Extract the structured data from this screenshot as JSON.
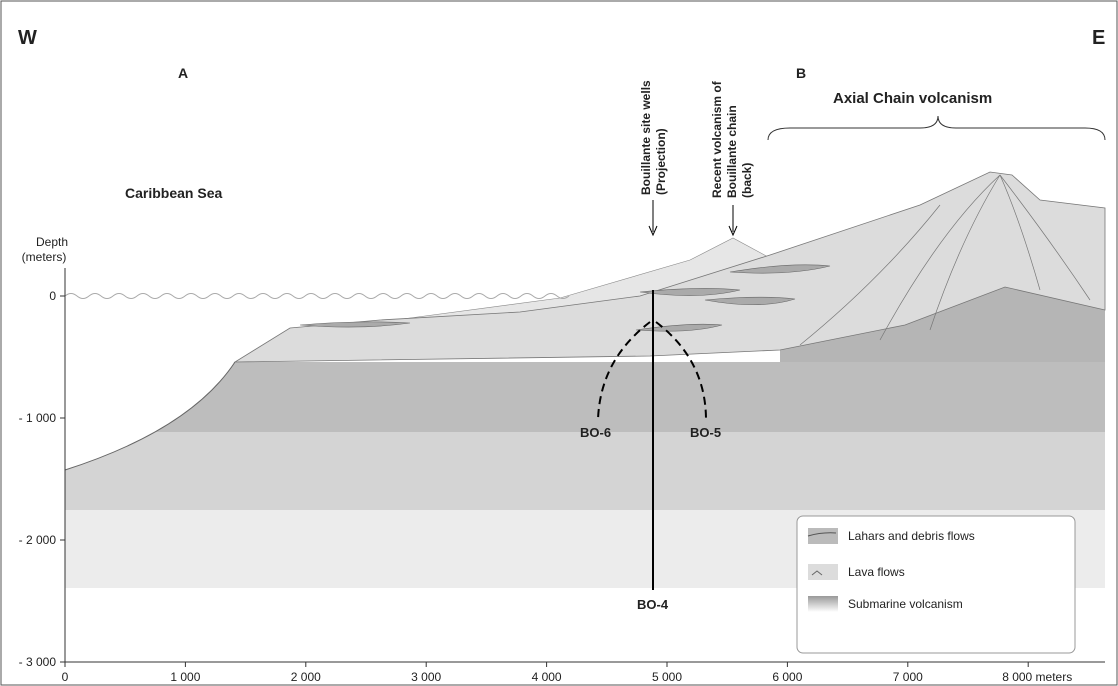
{
  "labels": {
    "west": "W",
    "east": "E",
    "point_a": "A",
    "point_b": "B",
    "sea": "Caribbean Sea",
    "axial": "Axial Chain volcanism",
    "wells": [
      "Bouillante site wells",
      "(Projection)"
    ],
    "recent": [
      "Recent volcanism of",
      "Bouillante chain",
      "(back)"
    ],
    "depth": [
      "Depth",
      "(meters)"
    ],
    "bo6": "BO-6",
    "bo5": "BO-5",
    "bo4": "BO-4"
  },
  "legend": [
    "Lahars and debris flows",
    "Lava flows",
    "Submarine volcanism"
  ],
  "x_axis": [
    "0",
    "1 000",
    "2 000",
    "3 000",
    "4 000",
    "5 000",
    "6 000",
    "7 000",
    "8 000 meters"
  ],
  "y_axis": [
    "0",
    "- 1 000",
    "- 2 000",
    "- 3 000"
  ]
}
